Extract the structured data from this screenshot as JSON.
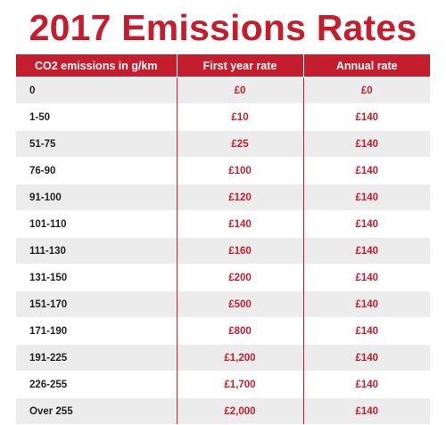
{
  "title": "2017 Emissions Rates",
  "colors": {
    "accent": "#c41e2e",
    "row_shade": "#ececec",
    "text_dark": "#231f20"
  },
  "table": {
    "headers": [
      "CO2 emissions in g/km",
      "First year rate",
      "Annual rate"
    ],
    "rows": [
      [
        "0",
        "£0",
        "£0"
      ],
      [
        "1-50",
        "£10",
        "£140"
      ],
      [
        "51-75",
        "£25",
        "£140"
      ],
      [
        "76-90",
        "£100",
        "£140"
      ],
      [
        "91-100",
        "£120",
        "£140"
      ],
      [
        "101-110",
        "£140",
        "£140"
      ],
      [
        "111-130",
        "£160",
        "£140"
      ],
      [
        "131-150",
        "£200",
        "£140"
      ],
      [
        "151-170",
        "£500",
        "£140"
      ],
      [
        "171-190",
        "£800",
        "£140"
      ],
      [
        "191-225",
        "£1,200",
        "£140"
      ],
      [
        "226-255",
        "£1,700",
        "£140"
      ],
      [
        "Over 255",
        "£2,000",
        "£140"
      ]
    ]
  }
}
